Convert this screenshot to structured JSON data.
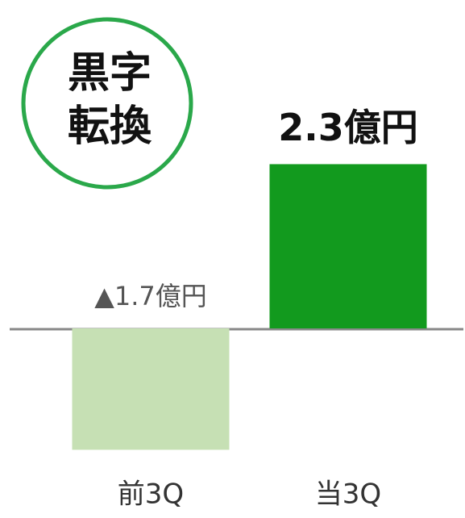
{
  "chart_data": {
    "type": "bar",
    "badge": [
      "黒字",
      "転換"
    ],
    "categories": [
      "前3Q",
      "当3Q"
    ],
    "values": [
      -1.7,
      2.3
    ],
    "value_labels": [
      "▲1.7億円",
      "2.3億円"
    ],
    "colors": [
      "#c6e0b4",
      "#129a1e"
    ]
  }
}
